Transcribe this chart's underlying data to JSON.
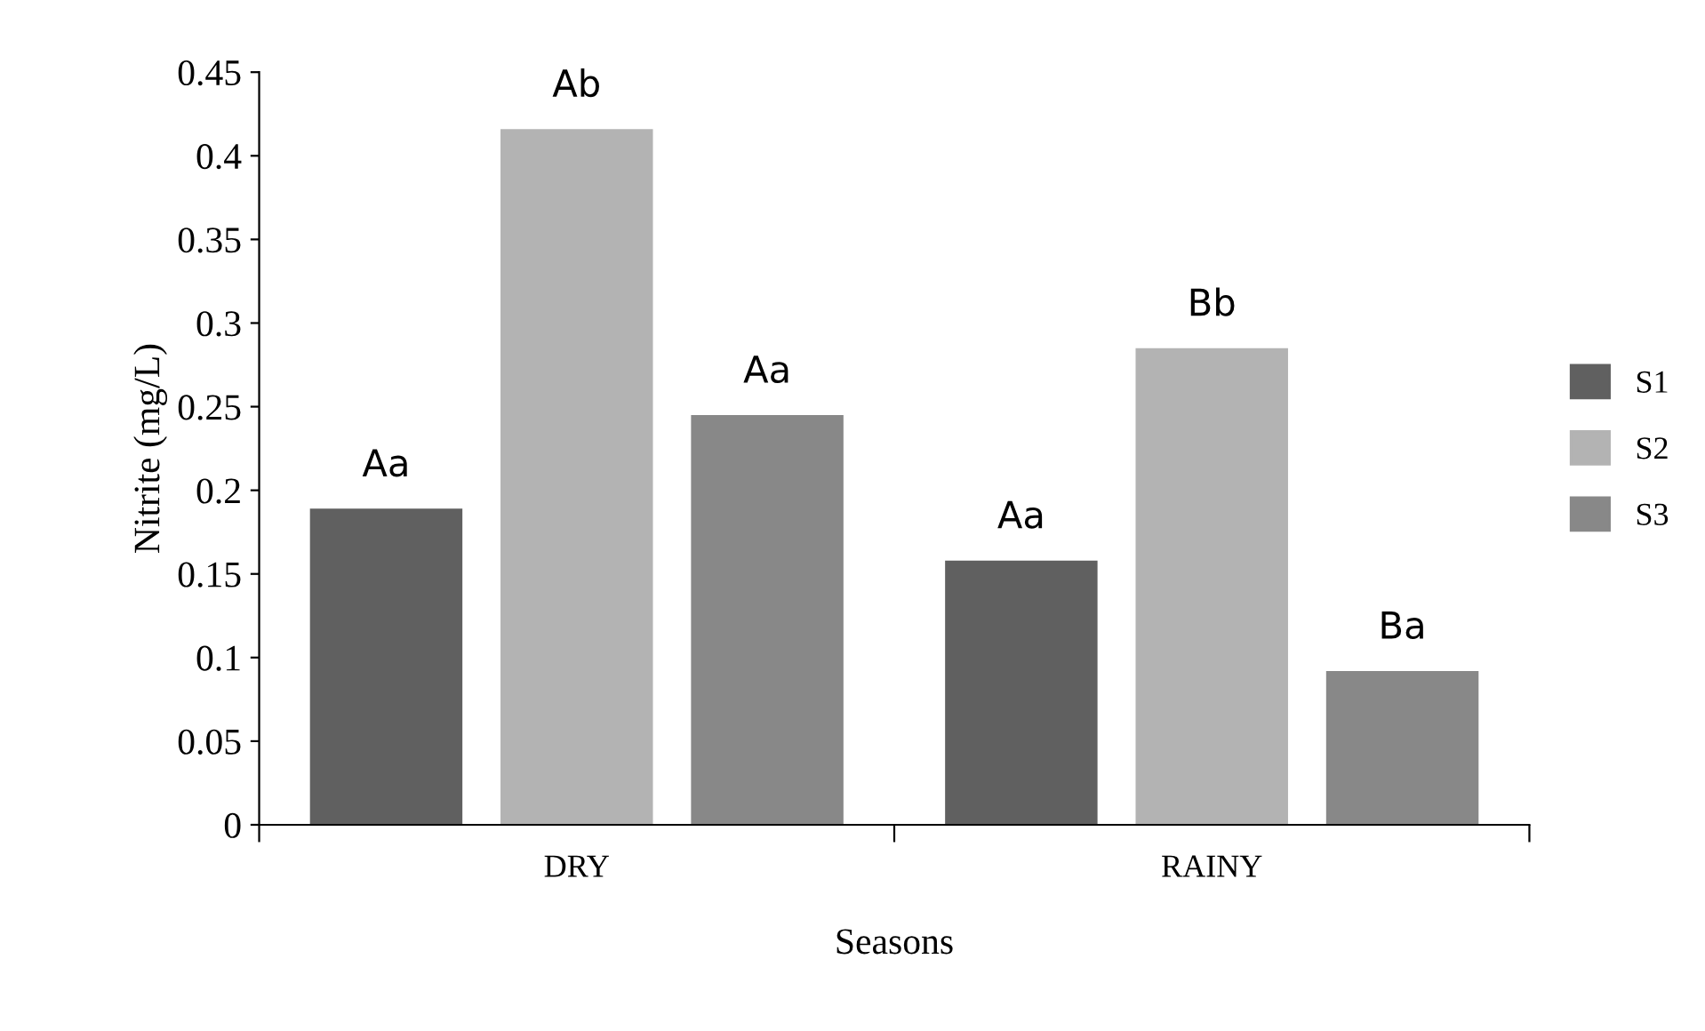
{
  "chart_data": {
    "type": "bar",
    "xlabel": "Seasons",
    "ylabel": "Nitrite (mg/L)",
    "categories": [
      "DRY",
      "RAINY"
    ],
    "series": [
      {
        "name": "S1",
        "color": "#606060",
        "values": [
          0.189,
          0.158
        ],
        "value_labels": [
          "Aa",
          "Aa"
        ]
      },
      {
        "name": "S2",
        "color": "#b3b3b3",
        "values": [
          0.416,
          0.285
        ],
        "value_labels": [
          "Ab",
          "Bb"
        ]
      },
      {
        "name": "S3",
        "color": "#888888",
        "values": [
          0.245,
          0.092
        ],
        "value_labels": [
          "Aa",
          "Ba"
        ]
      }
    ],
    "ylim": [
      0,
      0.45
    ],
    "yticks": [
      0,
      0.05,
      0.1,
      0.15,
      0.2,
      0.25,
      0.3,
      0.35,
      0.4,
      0.45
    ],
    "grid": false,
    "legend": "right"
  }
}
